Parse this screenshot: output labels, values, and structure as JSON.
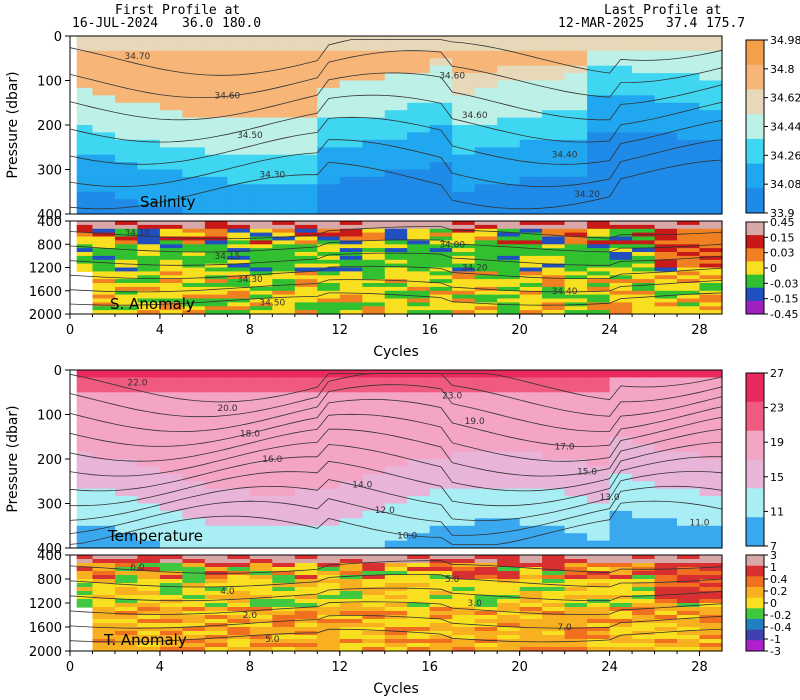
{
  "header": {
    "first_label": "First Profile at",
    "first_date": "16-JUL-2024",
    "first_lat": "36.0",
    "first_lon": "180.0",
    "last_label": "Last Profile at",
    "last_date": "12-MAR-2025",
    "last_lat": "37.4",
    "last_lon": "175.7"
  },
  "chart_data": [
    {
      "type": "heatmap",
      "panel": "Salinity",
      "title": "Salinity",
      "ylabel": "Pressure (dbar)",
      "xlim": [
        0,
        29
      ],
      "ylim": [
        400,
        0
      ],
      "yticks": [
        0,
        100,
        200,
        300,
        400
      ],
      "colorbar": {
        "ticks": [
          "34.98",
          "34.8",
          "34.62",
          "34.44",
          "34.26",
          "34.08",
          "33.9"
        ],
        "colors": [
          "#f4a04a",
          "#f7b678",
          "#e7d8b9",
          "#bdf0e6",
          "#3fd6f2",
          "#21a7f0",
          "#1f8ae8"
        ]
      },
      "contour_labels": [
        "34.70",
        "34.60",
        "34.60",
        "34.60",
        "34.50",
        "34.40",
        "34.30",
        "34.20"
      ]
    },
    {
      "type": "heatmap",
      "panel": "S. Anomaly",
      "title": "S. Anomaly",
      "ylim": [
        2000,
        400
      ],
      "yticks": [
        400,
        800,
        1200,
        1600,
        2000
      ],
      "colorbar": {
        "ticks": [
          "0.45",
          "0.15",
          "0.03",
          "0",
          "-0.03",
          "-0.15",
          "-0.45"
        ],
        "colors": [
          "#d8a8a8",
          "#c81818",
          "#f08020",
          "#f8e020",
          "#30c030",
          "#2050c0",
          "#a020c0"
        ]
      },
      "contour_labels": [
        "34.10",
        "34.00",
        "34.15",
        "34.20",
        "34.30",
        "34.40",
        "34.50"
      ]
    },
    {
      "type": "heatmap",
      "panel": "Temperature",
      "title": "Temperature",
      "ylabel": "Pressure (dbar)",
      "xlim": [
        0,
        29
      ],
      "ylim": [
        400,
        0
      ],
      "yticks": [
        0,
        100,
        200,
        300,
        400
      ],
      "colorbar": {
        "ticks": [
          "27",
          "23",
          "19",
          "15",
          "11",
          "7"
        ],
        "colors": [
          "#ea2a5c",
          "#f05a80",
          "#f4a4c4",
          "#e8b4d8",
          "#a8eef4",
          "#3aa8ee"
        ]
      },
      "contour_labels": [
        "22.0",
        "23.0",
        "20.0",
        "19.0",
        "18.0",
        "17.0",
        "16.0",
        "15.0",
        "14.0",
        "13.0",
        "12.0",
        "11.0",
        "10.0"
      ]
    },
    {
      "type": "heatmap",
      "panel": "T. Anomaly",
      "title": "T. Anomaly",
      "ylim": [
        2000,
        400
      ],
      "yticks": [
        400,
        800,
        1200,
        1600,
        2000
      ],
      "colorbar": {
        "ticks": [
          "3",
          "1",
          "0.4",
          "0.2",
          "0",
          "-0.2",
          "-0.4",
          "-1",
          "-3"
        ],
        "colors": [
          "#d8a8a8",
          "#d83030",
          "#f07020",
          "#f8b020",
          "#f8e020",
          "#40c840",
          "#2080c0",
          "#4040b0",
          "#b020d0"
        ]
      },
      "contour_labels": [
        "6.0",
        "5.0",
        "4.0",
        "3.0",
        "2.0",
        "7.0",
        "5.0"
      ]
    }
  ],
  "x_axis": {
    "label": "Cycles",
    "ticks": [
      "0",
      "4",
      "8",
      "12",
      "16",
      "20",
      "24",
      "28"
    ]
  }
}
